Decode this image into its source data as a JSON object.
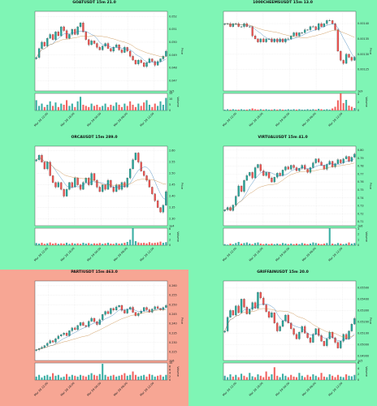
{
  "chart_data": [
    {
      "type": "candlestick",
      "title": "GOATUSDT 15m 21.0",
      "ylabel": "Price",
      "vlabel": "Volume",
      "vexp": "1e5",
      "price_ticks": [
        "0.052",
        "0.051",
        "0.050",
        "0.049",
        "0.048",
        "0.047"
      ],
      "volume_ticks": [
        "15",
        "10",
        "5",
        "0"
      ],
      "x_ticks": [
        "Mar 28 12:00",
        "Mar 28 18:00",
        "Mar 29 00:00",
        "Mar 29 06:00",
        "Mar 29 12:00"
      ],
      "ylim": [
        0.0462,
        0.0524
      ],
      "price": [
        0.0488,
        0.0495,
        0.05,
        0.0497,
        0.0503,
        0.0506,
        0.0502,
        0.0508,
        0.0505,
        0.0512,
        0.0509,
        0.0503,
        0.0506,
        0.051,
        0.0506,
        0.0512,
        0.0515,
        0.0508,
        0.0502,
        0.0498,
        0.0501,
        0.0499,
        0.0496,
        0.0494,
        0.0497,
        0.0499,
        0.0495,
        0.0493,
        0.0496,
        0.0498,
        0.0494,
        0.0492,
        0.0496,
        0.0493,
        0.0489,
        0.0486,
        0.0483,
        0.0486,
        0.0484,
        0.0481,
        0.0484,
        0.0487,
        0.0485,
        0.0482,
        0.0485,
        0.0487,
        0.0489,
        0.0493
      ],
      "volume": [
        9,
        4,
        6,
        3,
        5,
        8,
        4,
        7,
        3,
        6,
        5,
        9,
        4,
        6,
        3,
        8,
        12,
        5,
        4,
        3,
        6,
        4,
        5,
        3,
        4,
        6,
        3,
        5,
        4,
        7,
        5,
        3,
        6,
        4,
        8,
        5,
        3,
        6,
        4,
        7,
        9,
        5,
        3,
        6,
        4,
        8,
        5,
        11
      ]
    },
    {
      "type": "candlestick",
      "title": "1000CHEEMSUSDT 15m 13.0",
      "ylabel": "Price",
      "vlabel": "Volume",
      "vexp": "1e9",
      "price_ticks": [
        "0.00140",
        "0.00135",
        "0.00130",
        "0.00125"
      ],
      "volume_ticks": [
        "4",
        "2",
        "0"
      ],
      "x_ticks": [
        "Mar 28 12:00",
        "Mar 28 18:00",
        "Mar 29 00:00",
        "Mar 29 06:00",
        "Mar 29 12:00"
      ],
      "ylim": [
        0.00118,
        0.00144
      ],
      "price": [
        0.0014,
        0.0014,
        0.00139,
        0.0014,
        0.0014,
        0.00139,
        0.00139,
        0.0014,
        0.00139,
        0.00139,
        0.00136,
        0.00135,
        0.00134,
        0.00135,
        0.00134,
        0.00135,
        0.00135,
        0.00134,
        0.00135,
        0.00134,
        0.00135,
        0.00134,
        0.00135,
        0.00135,
        0.00136,
        0.00137,
        0.00136,
        0.00137,
        0.00137,
        0.00138,
        0.00138,
        0.00139,
        0.00139,
        0.00138,
        0.0014,
        0.00139,
        0.0014,
        0.00141,
        0.00141,
        0.0014,
        0.00138,
        0.00131,
        0.00128,
        0.00127,
        0.0013,
        0.00129,
        0.00128,
        0.00129
      ],
      "volume": [
        0.2,
        0.3,
        0.2,
        0.3,
        0.2,
        0.2,
        0.3,
        0.2,
        0.2,
        0.3,
        0.5,
        0.3,
        0.2,
        0.3,
        0.2,
        0.3,
        0.2,
        0.2,
        0.3,
        0.2,
        0.3,
        0.2,
        0.2,
        0.3,
        0.2,
        0.3,
        0.2,
        0.3,
        0.2,
        0.2,
        0.3,
        0.2,
        0.3,
        0.2,
        0.4,
        0.3,
        0.2,
        0.3,
        0.2,
        0.5,
        0.9,
        2.5,
        4.2,
        1.8,
        2.6,
        1.2,
        0.9,
        0.6
      ]
    },
    {
      "type": "candlestick",
      "title": "ORCAUSDT 15m 289.0",
      "ylabel": "Price",
      "vlabel": "Volume",
      "vexp": "1e4",
      "price_ticks": [
        "2.60",
        "2.55",
        "2.50",
        "2.45",
        "2.40",
        "2.35",
        "2.30"
      ],
      "volume_ticks": [
        "6",
        "4",
        "2",
        "0"
      ],
      "x_ticks": [
        "Mar 28 12:00",
        "Mar 28 18:00",
        "Mar 29 00:00",
        "Mar 29 06:00",
        "Mar 29 12:00"
      ],
      "ylim": [
        2.27,
        2.62
      ],
      "price": [
        2.56,
        2.58,
        2.55,
        2.52,
        2.55,
        2.49,
        2.46,
        2.44,
        2.46,
        2.43,
        2.4,
        2.43,
        2.46,
        2.44,
        2.48,
        2.45,
        2.43,
        2.46,
        2.48,
        2.45,
        2.5,
        2.47,
        2.44,
        2.42,
        2.45,
        2.43,
        2.47,
        2.44,
        2.42,
        2.45,
        2.43,
        2.46,
        2.44,
        2.48,
        2.52,
        2.56,
        2.59,
        2.55,
        2.51,
        2.49,
        2.47,
        2.44,
        2.41,
        2.38,
        2.35,
        2.33,
        2.36,
        2.42
      ],
      "volume": [
        0.8,
        0.6,
        0.9,
        0.5,
        0.7,
        1.0,
        0.6,
        0.8,
        0.5,
        0.7,
        0.6,
        0.9,
        0.5,
        0.8,
        0.6,
        0.7,
        0.5,
        0.9,
        0.6,
        0.8,
        0.5,
        0.7,
        0.6,
        0.8,
        0.5,
        0.7,
        0.9,
        0.6,
        0.5,
        0.8,
        0.6,
        0.7,
        0.9,
        1.2,
        2.0,
        6.2,
        1.5,
        1.0,
        0.8,
        0.9,
        0.7,
        1.1,
        0.8,
        0.9,
        1.0,
        1.3,
        0.9,
        1.1
      ]
    },
    {
      "type": "candlestick",
      "title": "VIRTUALUSDT 15m 41.0",
      "ylabel": "Price",
      "vlabel": "Volume",
      "vexp": "1e6",
      "price_ticks": [
        "0.80",
        "0.79",
        "0.78",
        "0.77",
        "0.76",
        "0.75",
        "0.74",
        "0.73",
        "0.72",
        "0.71"
      ],
      "volume_ticks": [
        "3",
        "2",
        "1",
        "0"
      ],
      "x_ticks": [
        "Mar 28 12:00",
        "Mar 28 18:00",
        "Mar 29 00:00",
        "Mar 29 06:00",
        "Mar 29 12:00"
      ],
      "ylim": [
        0.705,
        0.805
      ],
      "price": [
        0.725,
        0.728,
        0.724,
        0.731,
        0.742,
        0.755,
        0.748,
        0.762,
        0.768,
        0.772,
        0.765,
        0.778,
        0.782,
        0.774,
        0.768,
        0.772,
        0.765,
        0.76,
        0.766,
        0.771,
        0.768,
        0.775,
        0.779,
        0.776,
        0.781,
        0.778,
        0.774,
        0.777,
        0.781,
        0.776,
        0.772,
        0.778,
        0.784,
        0.789,
        0.785,
        0.781,
        0.776,
        0.782,
        0.786,
        0.779,
        0.783,
        0.788,
        0.784,
        0.789,
        0.792,
        0.786,
        0.791,
        0.795
      ],
      "volume": [
        0.2,
        0.1,
        0.3,
        0.2,
        0.4,
        0.6,
        0.3,
        0.4,
        0.5,
        0.3,
        0.2,
        0.4,
        0.5,
        0.3,
        0.2,
        0.3,
        0.2,
        0.3,
        0.2,
        0.3,
        0.2,
        0.4,
        0.3,
        0.2,
        0.3,
        0.2,
        0.3,
        0.2,
        0.4,
        0.3,
        0.2,
        0.3,
        0.5,
        0.4,
        0.3,
        0.2,
        0.3,
        0.4,
        3.1,
        0.3,
        0.2,
        0.4,
        0.3,
        0.2,
        0.3,
        0.5,
        0.3,
        0.4
      ]
    },
    {
      "type": "candlestick",
      "title": "PARTIUSDT 15m 463.0",
      "highlight": true,
      "ylabel": "Price",
      "vlabel": "Volume",
      "vexp": "1e6",
      "price_ticks": [
        "0.260",
        "0.255",
        "0.250",
        "0.245",
        "0.240",
        "0.235",
        "0.230",
        "0.225"
      ],
      "volume_ticks": [
        "10",
        "8",
        "6",
        "4",
        "2",
        "0"
      ],
      "x_ticks": [
        "Mar 28 12:00",
        "Mar 28 18:00",
        "Mar 29 00:00",
        "Mar 29 06:00",
        "Mar 29 12:00"
      ],
      "ylim": [
        0.2205,
        0.2625
      ],
      "price": [
        0.2262,
        0.2268,
        0.2275,
        0.2284,
        0.2296,
        0.231,
        0.2302,
        0.232,
        0.2334,
        0.2342,
        0.235,
        0.2336,
        0.2362,
        0.2377,
        0.2368,
        0.239,
        0.2405,
        0.239,
        0.2384,
        0.2412,
        0.2428,
        0.241,
        0.2395,
        0.242,
        0.2448,
        0.2464,
        0.2452,
        0.248,
        0.2471,
        0.2488,
        0.2496,
        0.247,
        0.2455,
        0.2476,
        0.2486,
        0.2459,
        0.2442,
        0.2454,
        0.2466,
        0.2485,
        0.2473,
        0.246,
        0.2477,
        0.2489,
        0.248,
        0.2473,
        0.2485,
        0.2495
      ],
      "volume": [
        2,
        3,
        1.5,
        2.5,
        3,
        2,
        4,
        2.5,
        3,
        1.5,
        2,
        3.5,
        2,
        3,
        2.5,
        2,
        3,
        2.5,
        2,
        3,
        4,
        3,
        2.5,
        3.5,
        9.5,
        3,
        2,
        2.5,
        3,
        2,
        2.5,
        3,
        4,
        2.5,
        3,
        5,
        3,
        2,
        2.5,
        3,
        2,
        3.5,
        3,
        2,
        2.5,
        3,
        2,
        3
      ]
    },
    {
      "type": "candlestick",
      "title": "GRIFFAINUSDT 15m 20.0",
      "ylabel": "Price",
      "vlabel": "Volume",
      "vexp": "1e5",
      "price_ticks": [
        "0.05500",
        "0.05400",
        "0.05300",
        "0.05200",
        "0.05100",
        "0.05000",
        "0.04900"
      ],
      "volume_ticks": [
        "6",
        "4",
        "2",
        "0"
      ],
      "x_ticks": [
        "Mar 28 12:00",
        "Mar 28 18:00",
        "Mar 29 00:00",
        "Mar 29 06:00",
        "Mar 29 12:00"
      ],
      "ylim": [
        0.0486,
        0.0556
      ],
      "price": [
        0.0512,
        0.0524,
        0.053,
        0.0526,
        0.0534,
        0.0528,
        0.054,
        0.0533,
        0.0527,
        0.0531,
        0.0537,
        0.0532,
        0.0546,
        0.0541,
        0.0535,
        0.0529,
        0.0524,
        0.0528,
        0.0519,
        0.0512,
        0.0516,
        0.0521,
        0.0526,
        0.0519,
        0.0514,
        0.0509,
        0.0505,
        0.0511,
        0.0516,
        0.051,
        0.0506,
        0.0502,
        0.0509,
        0.0514,
        0.0508,
        0.0503,
        0.0499,
        0.0505,
        0.0511,
        0.0506,
        0.0502,
        0.0497,
        0.0503,
        0.0509,
        0.0505,
        0.0512,
        0.0518,
        0.0523
      ],
      "volume": [
        1.5,
        1,
        2,
        1.2,
        1.8,
        1,
        2.2,
        1.5,
        1,
        2.5,
        1.3,
        1,
        2,
        1.5,
        1,
        3,
        1.2,
        2,
        4.5,
        1.5,
        1,
        2.2,
        1.5,
        1,
        1.8,
        1.2,
        1,
        2.5,
        1.5,
        1,
        1.8,
        1.2,
        2,
        1.5,
        1,
        2.5,
        1.2,
        1,
        2,
        1.5,
        1,
        1.8,
        1.2,
        1,
        2,
        1.5,
        1.3,
        1.8
      ]
    }
  ],
  "colors": {
    "background": "#7ff5b5",
    "highlight": "#f7a694",
    "up": "#26a69a",
    "down": "#ef5350",
    "ma1": "#1a6cb0",
    "ma2": "#c07a2a"
  }
}
